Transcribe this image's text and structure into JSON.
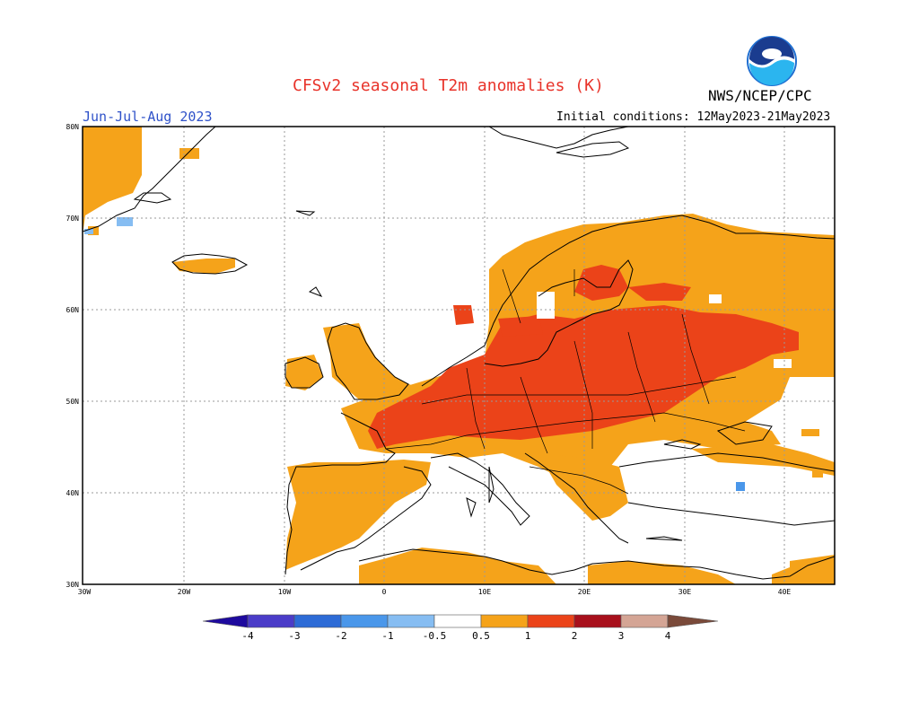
{
  "header": {
    "title": "CFSv2 seasonal T2m anomalies (K)",
    "producer": "NWS/NCEP/CPC",
    "season": "Jun-Jul-Aug 2023",
    "initial_conditions": "Initial conditions: 12May2023-21May2023"
  },
  "logo": {
    "icon": "noaa-logo-icon",
    "text": "NOAA"
  },
  "axes": {
    "lon_ticks": [
      "30W",
      "20W",
      "10W",
      "0",
      "10E",
      "20E",
      "30E",
      "40E"
    ],
    "lat_ticks": [
      "80N",
      "70N",
      "60N",
      "50N",
      "40N",
      "30N"
    ],
    "lon_range": [
      -30,
      45
    ],
    "lat_range": [
      30,
      80
    ],
    "grid": "dotted, every 10 degrees"
  },
  "colorbar": {
    "labels": [
      "-4",
      "-3",
      "-2",
      "-1",
      "-0.5",
      "0.5",
      "1",
      "2",
      "3",
      "4"
    ],
    "colors": {
      "lt_-4": "#1e0a9e",
      "-4_-3": "#4b3cc8",
      "-3_-2": "#2d6bd6",
      "-2_-1": "#4a97ea",
      "-1_-0.5": "#86bdf2",
      "-0.5_0.5": "#ffffff",
      "0.5_1": "#f5a31a",
      "1_2": "#eb4319",
      "2_3": "#a8101c",
      "3_4": "#d4a595",
      "gt_4": "#7a4a3a"
    }
  },
  "colors": {
    "title": "#e8332a",
    "season": "#2f52c9",
    "noaa_blue": "#1f6fd1"
  }
}
